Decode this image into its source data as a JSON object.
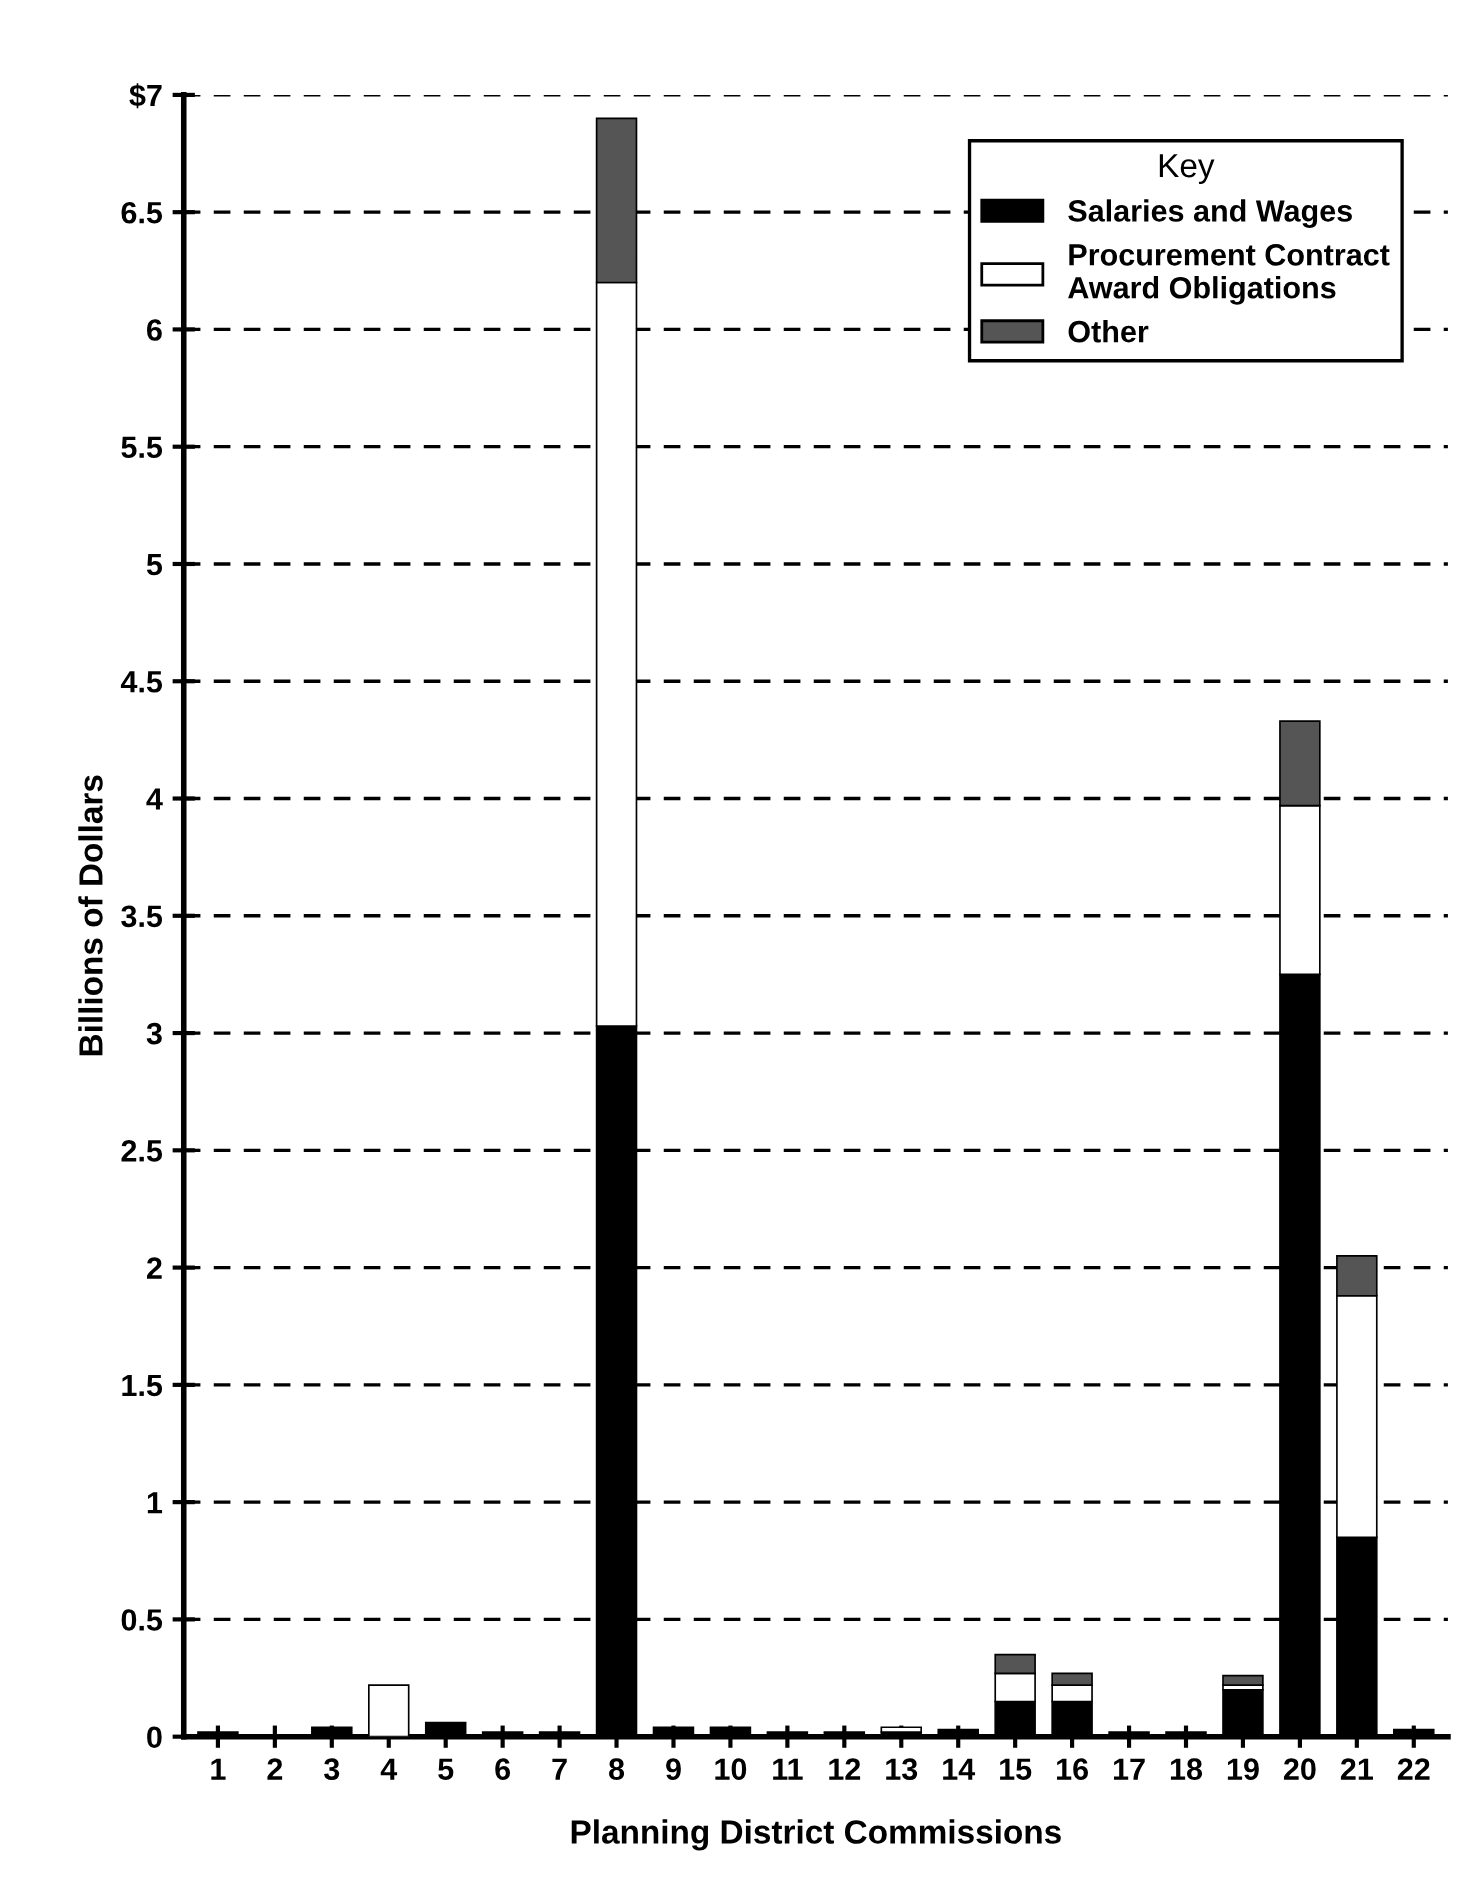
{
  "chart_data": {
    "type": "bar",
    "stacked": true,
    "xlabel": "Planning District Commissions",
    "ylabel": "Billions of Dollars",
    "categories": [
      "1",
      "2",
      "3",
      "4",
      "5",
      "6",
      "7",
      "8",
      "9",
      "10",
      "11",
      "12",
      "13",
      "14",
      "15",
      "16",
      "17",
      "18",
      "19",
      "20",
      "21",
      "22"
    ],
    "series": [
      {
        "name": "Salaries and Wages",
        "color": "#000000",
        "values": [
          0.02,
          0,
          0.04,
          0,
          0.06,
          0.02,
          0.02,
          3.03,
          0.04,
          0.04,
          0.02,
          0.02,
          0.02,
          0.03,
          0.15,
          0.15,
          0.02,
          0.02,
          0.2,
          3.25,
          0.85,
          0.03
        ]
      },
      {
        "name": "Procurement Contract\nAward Obligations",
        "color": "#ffffff",
        "values": [
          0,
          0,
          0,
          0.22,
          0,
          0,
          0,
          3.17,
          0,
          0,
          0,
          0,
          0.02,
          0,
          0.12,
          0.07,
          0,
          0,
          0.02,
          0.72,
          1.03,
          0
        ]
      },
      {
        "name": "Other",
        "color": "#555555",
        "values": [
          0,
          0,
          0,
          0,
          0,
          0,
          0,
          0.7,
          0,
          0,
          0,
          0,
          0,
          0,
          0.08,
          0.05,
          0,
          0,
          0.04,
          0.36,
          0.17,
          0
        ]
      }
    ],
    "ylim": [
      0,
      7
    ],
    "yticks": [
      0,
      0.5,
      1,
      1.5,
      2,
      2.5,
      3,
      3.5,
      4,
      4.5,
      5,
      5.5,
      6,
      6.5,
      {
        "value": 7,
        "label": "$7"
      }
    ],
    "grid": "y",
    "legend": "top right",
    "legend_title": "Key"
  }
}
